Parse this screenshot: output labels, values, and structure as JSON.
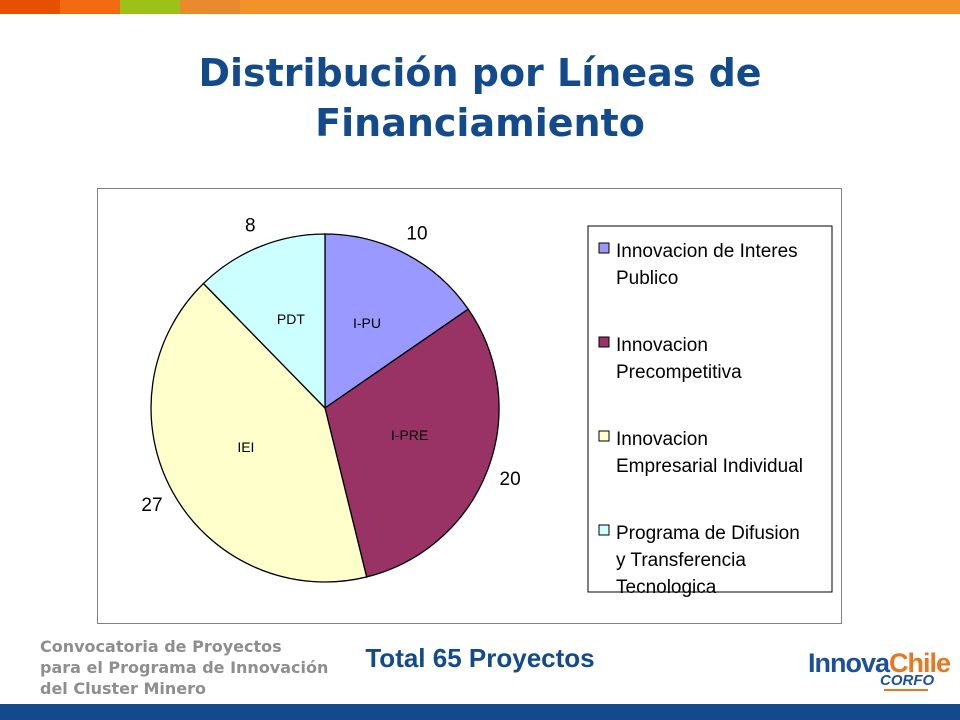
{
  "top_bar_colors": [
    "#e65100",
    "#f36b10",
    "#9cc21a",
    "#e98a2d",
    "#f39228"
  ],
  "title": "Distribución por Líneas de Financiamiento",
  "total_label": "Total 65 Proyectos",
  "footer": [
    "Convocatoria de Proyectos",
    "para el Programa de Innovación",
    "del Cluster Minero"
  ],
  "logo": {
    "brand_part1": "Innova",
    "brand_part2": "Chile",
    "sub": "CORFO",
    "color1": "#1c4f9c",
    "color2": "#e87722"
  },
  "accent_color": "#124a8c",
  "bottom_bar_color": "#124a8c",
  "chart_data": {
    "type": "pie",
    "slices": [
      {
        "name": "Innovacion de Interes Publico",
        "short": "I-PU",
        "value": 10,
        "color": "#9999ff"
      },
      {
        "name": "Innovacion Precompetitiva",
        "short": "I-PRE",
        "value": 20,
        "color": "#993366"
      },
      {
        "name": "Innovacion Empresarial Individual",
        "short": "IEI",
        "value": 27,
        "color": "#ffffcc"
      },
      {
        "name": "Programa de Difusion y Transferencia Tecnologica",
        "short": "PDT",
        "value": 8,
        "color": "#ccffff"
      }
    ],
    "legend_position": "right",
    "legend_lines": [
      [
        "Innovacion de Interes",
        "Publico"
      ],
      [
        "Innovacion",
        "Precompetitiva"
      ],
      [
        "Innovacion",
        "Empresarial Individual"
      ],
      [
        "Programa de Difusion",
        "y Transferencia",
        "Tecnologica"
      ]
    ]
  }
}
